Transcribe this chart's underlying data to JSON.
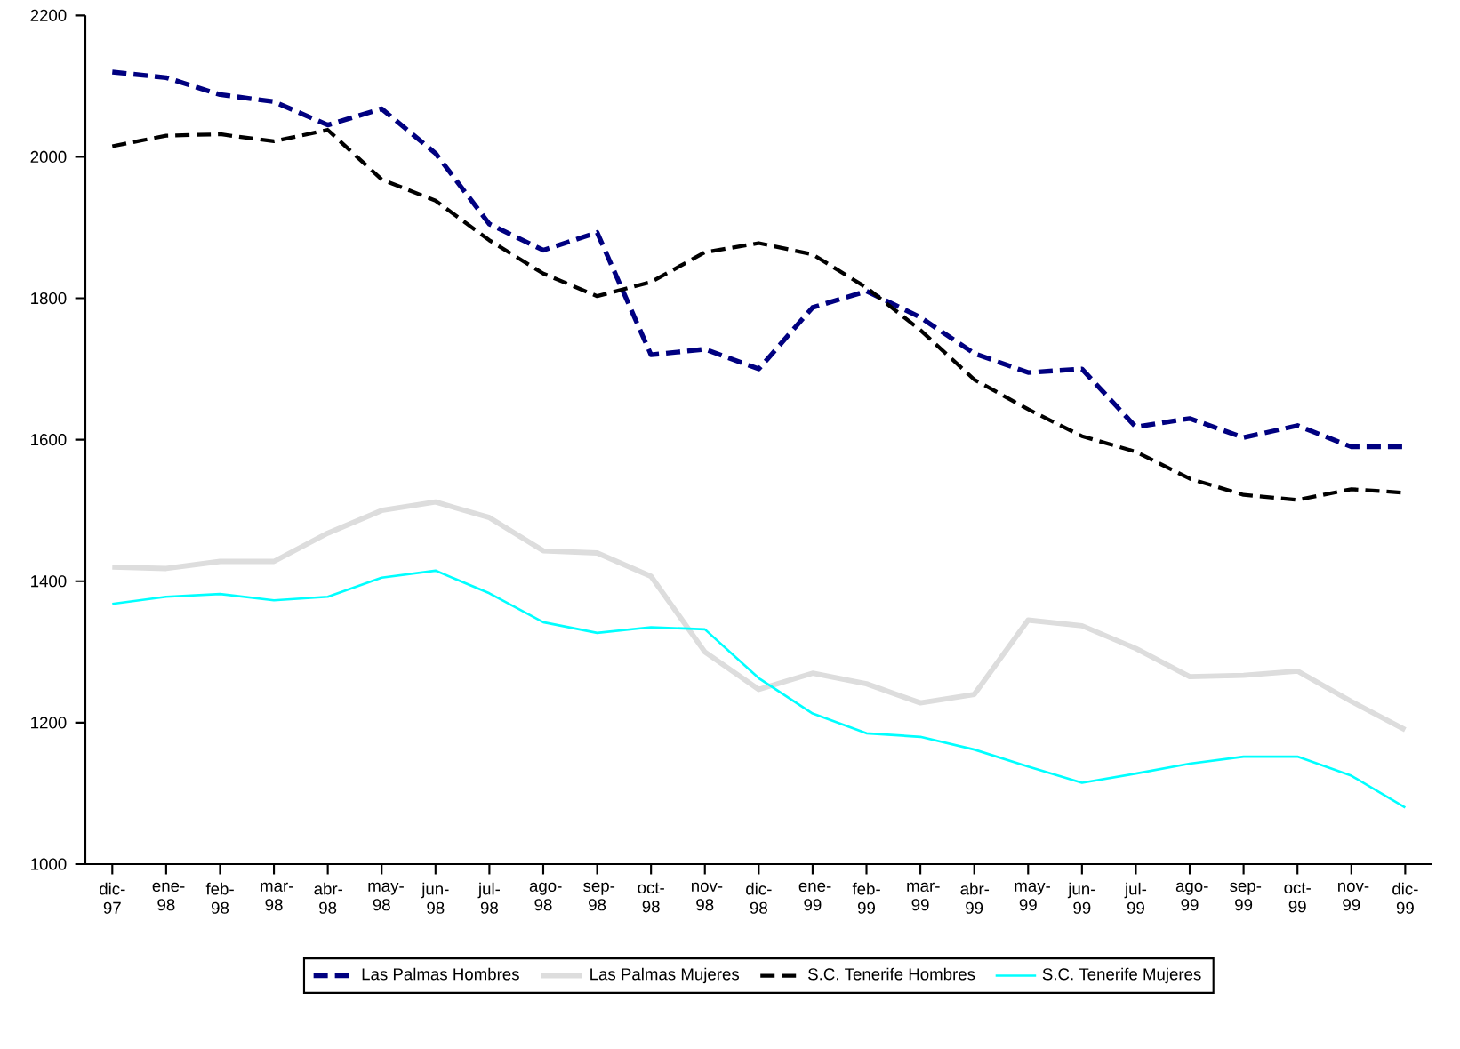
{
  "chart_data": {
    "type": "line",
    "categories": [
      "dic-97",
      "ene-98",
      "feb-98",
      "mar-98",
      "abr-98",
      "may-98",
      "jun-98",
      "jul-98",
      "ago-98",
      "sep-98",
      "oct-98",
      "nov-98",
      "dic-98",
      "ene-99",
      "feb-99",
      "mar-99",
      "abr-99",
      "may-99",
      "jun-99",
      "jul-99",
      "ago-99",
      "sep-99",
      "oct-99",
      "nov-99",
      "dic-99"
    ],
    "series": [
      {
        "name": "Las Palmas  Hombres",
        "color": "#000080",
        "line_style": "dashed",
        "values": [
          2120,
          2112,
          2088,
          2078,
          2045,
          2068,
          2005,
          1905,
          1868,
          1893,
          1720,
          1728,
          1700,
          1787,
          1810,
          1773,
          1722,
          1695,
          1700,
          1618,
          1630,
          1603,
          1620,
          1590,
          1590
        ]
      },
      {
        "name": "Las Palmas  Mujeres",
        "color": "#dddddd",
        "line_style": "solid",
        "values": [
          1420,
          1418,
          1428,
          1428,
          1468,
          1500,
          1512,
          1490,
          1443,
          1440,
          1407,
          1300,
          1247,
          1270,
          1255,
          1228,
          1240,
          1345,
          1337,
          1305,
          1265,
          1267,
          1273,
          1230,
          1190
        ]
      },
      {
        "name": "S.C. Tenerife  Hombres",
        "color": "#000000",
        "line_style": "dashed",
        "values": [
          2015,
          2030,
          2032,
          2022,
          2038,
          1968,
          1938,
          1882,
          1835,
          1803,
          1823,
          1865,
          1878,
          1862,
          1815,
          1755,
          1685,
          1643,
          1605,
          1583,
          1545,
          1522,
          1515,
          1530,
          1525
        ]
      },
      {
        "name": "S.C. Tenerife  Mujeres",
        "color": "#00ffff",
        "line_style": "solid",
        "values": [
          1368,
          1378,
          1382,
          1373,
          1378,
          1405,
          1415,
          1383,
          1342,
          1327,
          1335,
          1332,
          1263,
          1213,
          1185,
          1180,
          1162,
          1138,
          1115,
          1128,
          1142,
          1152,
          1152,
          1125,
          1080
        ]
      }
    ],
    "ylim": [
      1000,
      2200
    ],
    "yticks": [
      1000,
      1200,
      1400,
      1600,
      1800,
      2000,
      2200
    ],
    "grid": false,
    "legend": "bottom",
    "marker": "none"
  }
}
